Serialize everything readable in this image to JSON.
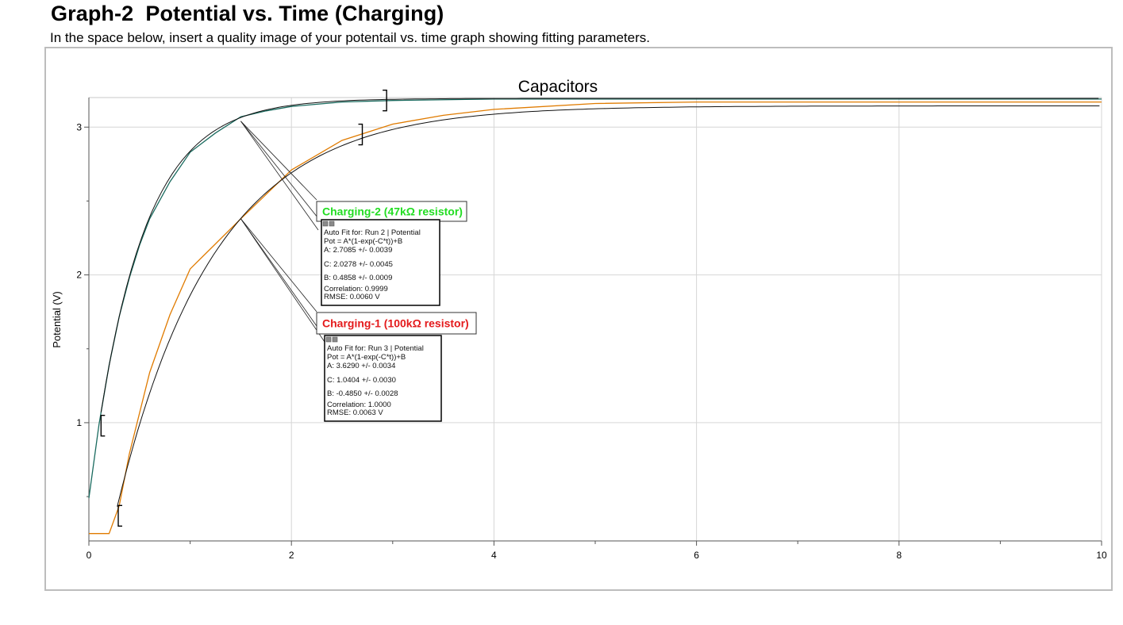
{
  "page": {
    "heading": "Graph-2  Potential vs. Time (Charging)",
    "instructions": "In the space below, insert a quality image of your potentail vs. time graph showing fitting parameters."
  },
  "chart_data": {
    "type": "line",
    "title": "Capacitors",
    "xlabel": "",
    "ylabel": "Potential (V)",
    "xlim": [
      0,
      10
    ],
    "ylim": [
      0.2,
      3.2
    ],
    "x_ticks": [
      0,
      2,
      4,
      6,
      8,
      10
    ],
    "y_ticks": [
      1,
      2,
      3
    ],
    "grid": true,
    "series": [
      {
        "color": "#1a6b5f",
        "fit": {
          "A": 2.7085,
          "C": 2.0278,
          "B": 0.4858
        },
        "x": [
          0.0,
          0.1,
          0.2,
          0.3,
          0.4,
          0.5,
          0.6,
          0.8,
          1.0,
          1.25,
          1.5,
          1.75,
          2.0,
          2.5,
          3.0,
          4.0,
          5.0,
          6.0,
          8.0,
          10.0
        ],
        "values": [
          0.49,
          0.99,
          1.39,
          1.72,
          1.98,
          2.2,
          2.38,
          2.63,
          2.83,
          2.96,
          3.07,
          3.11,
          3.14,
          3.17,
          3.18,
          3.19,
          3.19,
          3.19,
          3.19,
          3.19
        ]
      },
      {
        "color": "#e07b00",
        "fit": {
          "A": 3.629,
          "C": 1.0404,
          "B": -0.485
        },
        "x": [
          0.0,
          0.2,
          0.3,
          0.4,
          0.6,
          0.8,
          1.0,
          1.25,
          1.5,
          2.0,
          2.5,
          3.0,
          3.5,
          4.0,
          5.0,
          6.0,
          7.0,
          8.0,
          10.0
        ],
        "values": [
          0.25,
          0.25,
          0.44,
          0.79,
          1.34,
          1.73,
          2.04,
          2.21,
          2.38,
          2.71,
          2.91,
          3.02,
          3.08,
          3.12,
          3.16,
          3.17,
          3.17,
          3.17,
          3.17
        ]
      }
    ],
    "annotations": [
      {
        "label": "Charging-2 (47kΩ resistor)",
        "label_color": "#22dd22",
        "lines": [
          "Auto Fit for: Run 2 | Potential",
          "Pot = A*(1-exp(-C*t))+B",
          "A: 2.7085 +/- 0.0039",
          "C: 2.0278 +/- 0.0045",
          "B: 0.4858 +/- 0.0009",
          "Correlation: 0.9999",
          "RMSE: 0.0060 V"
        ]
      },
      {
        "label": "Charging-1 (100kΩ resistor)",
        "label_color": "#e41a1c",
        "lines": [
          "Auto Fit for: Run 3 | Potential",
          "Pot = A*(1-exp(-C*t))+B",
          "A: 3.6290 +/- 0.0034",
          "C: 1.0404 +/- 0.0030",
          "B: -0.4850 +/- 0.0028",
          "Correlation: 1.0000",
          "RMSE: 0.0063 V"
        ]
      }
    ]
  }
}
